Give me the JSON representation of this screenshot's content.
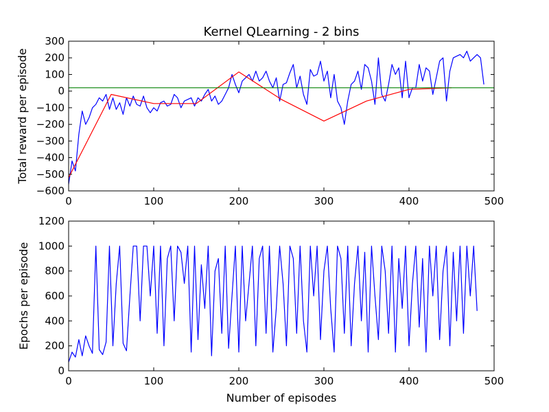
{
  "chart_data": [
    {
      "type": "line",
      "title": "Kernel QLearning - 2 bins",
      "xlabel": "",
      "ylabel": "Total reward per episode",
      "xlim": [
        0,
        500
      ],
      "ylim": [
        -600,
        300
      ],
      "x_ticks": [
        0,
        100,
        200,
        300,
        400,
        500
      ],
      "y_ticks": [
        -600,
        -500,
        -400,
        -300,
        -200,
        -100,
        0,
        100,
        200,
        300
      ],
      "grid": false,
      "series": [
        {
          "color": "#0000ff",
          "x_start": 0,
          "x_step": 4,
          "values": [
            -560,
            -420,
            -480,
            -260,
            -120,
            -200,
            -160,
            -100,
            -80,
            -40,
            -60,
            -20,
            -110,
            -40,
            -110,
            -70,
            -140,
            -40,
            -90,
            -30,
            -80,
            -90,
            -30,
            -100,
            -130,
            -100,
            -120,
            -70,
            -60,
            -90,
            -80,
            -20,
            -40,
            -100,
            -60,
            -50,
            -40,
            -90,
            -40,
            -60,
            -20,
            10,
            -60,
            -30,
            -80,
            -60,
            -20,
            20,
            100,
            40,
            -10,
            60,
            80,
            100,
            60,
            120,
            60,
            80,
            120,
            60,
            20,
            80,
            -60,
            40,
            50,
            110,
            160,
            20,
            90,
            -20,
            -80,
            130,
            90,
            100,
            180,
            60,
            120,
            -40,
            100,
            -60,
            -100,
            -200,
            -60,
            40,
            60,
            120,
            10,
            160,
            140,
            60,
            -80,
            200,
            -20,
            -60,
            40,
            160,
            100,
            140,
            -40,
            180,
            -40,
            20,
            20,
            160,
            60,
            140,
            120,
            -20,
            80,
            180,
            200,
            -60,
            120,
            200,
            210,
            220,
            200,
            240,
            180,
            200,
            220,
            200,
            40
          ]
        },
        {
          "color": "#ff0000",
          "x": [
            0,
            50,
            100,
            150,
            200,
            250,
            300,
            350,
            400,
            450
          ],
          "values": [
            -520,
            -20,
            -75,
            -75,
            115,
            -50,
            -180,
            -60,
            10,
            20
          ]
        },
        {
          "color": "#008000",
          "x": [
            0,
            500
          ],
          "values": [
            20,
            20
          ]
        }
      ]
    },
    {
      "type": "line",
      "title": "",
      "xlabel": "Number of episodes",
      "ylabel": "Epochs per episode",
      "xlim": [
        0,
        500
      ],
      "ylim": [
        0,
        1200
      ],
      "x_ticks": [
        0,
        100,
        200,
        300,
        400,
        500
      ],
      "y_ticks": [
        0,
        200,
        400,
        600,
        800,
        1000,
        1200
      ],
      "grid": false,
      "series": [
        {
          "color": "#0000ff",
          "x_start": 0,
          "x_step": 4,
          "values": [
            70,
            150,
            110,
            250,
            120,
            280,
            200,
            140,
            1000,
            170,
            130,
            230,
            1000,
            200,
            700,
            1000,
            220,
            160,
            600,
            1000,
            1000,
            400,
            1000,
            1000,
            600,
            1000,
            300,
            1000,
            200,
            900,
            1000,
            400,
            1000,
            950,
            700,
            1000,
            150,
            1000,
            250,
            850,
            500,
            1000,
            120,
            800,
            900,
            300,
            1000,
            180,
            600,
            1000,
            150,
            1000,
            400,
            700,
            1000,
            200,
            900,
            1000,
            300,
            1000,
            150,
            500,
            1000,
            700,
            200,
            1000,
            900,
            300,
            1000,
            400,
            150,
            1000,
            600,
            1000,
            250,
            800,
            1000,
            500,
            150,
            1000,
            900,
            300,
            1000,
            200,
            700,
            1000,
            400,
            950,
            150,
            1000,
            600,
            250,
            1000,
            800,
            300,
            1000,
            150,
            900,
            500,
            1000,
            200,
            700,
            1000,
            350,
            900,
            150,
            1000,
            600,
            1000,
            250,
            800,
            1000,
            200,
            950,
            400,
            1000,
            300,
            1000,
            600,
            1000,
            480
          ]
        }
      ]
    }
  ]
}
